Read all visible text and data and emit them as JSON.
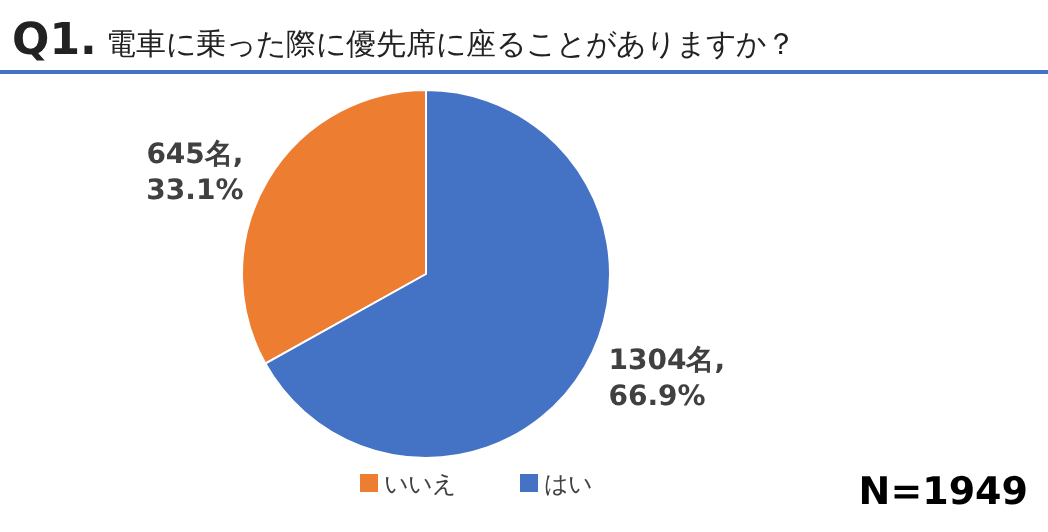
{
  "chart_data": {
    "type": "pie",
    "title": "Q1. 電車に乗った際に優先席に座ることがありますか？",
    "categories": [
      "いいえ",
      "はい"
    ],
    "values": [
      645,
      1304
    ],
    "colors": [
      "#ed7d31",
      "#4472c4"
    ],
    "value_labels": [
      "645名,\n33.1%",
      "1304名,\n66.9%"
    ],
    "legend": "bottom",
    "annotations": [
      "N=1949"
    ]
  }
}
